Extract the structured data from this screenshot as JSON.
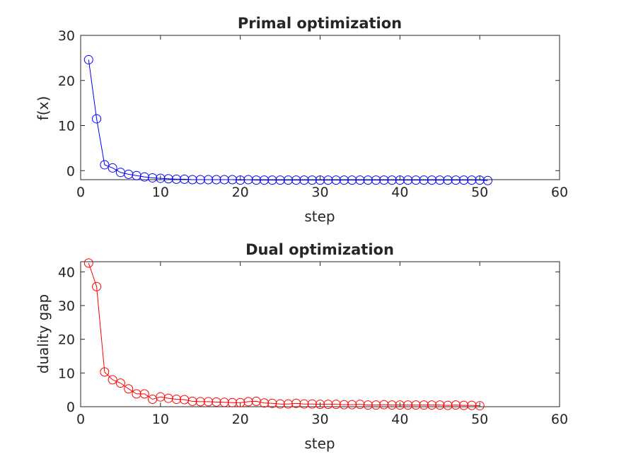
{
  "chart_data": [
    {
      "type": "line",
      "title": "Primal optimization",
      "xlabel": "step",
      "ylabel": "f(x)",
      "xlim": [
        0,
        60
      ],
      "ylim": [
        -2,
        30
      ],
      "xticks": [
        0,
        10,
        20,
        30,
        40,
        50,
        60
      ],
      "yticks": [
        0,
        10,
        20,
        30
      ],
      "grid": false,
      "marker": "circle",
      "color": "#0000ff",
      "series": [
        {
          "x": [
            1,
            2,
            3,
            4,
            5,
            6,
            7,
            8,
            9,
            10,
            11,
            12,
            13,
            14,
            15,
            16,
            17,
            18,
            19,
            20,
            21,
            22,
            23,
            24,
            25,
            26,
            27,
            28,
            29,
            30,
            31,
            32,
            33,
            34,
            35,
            36,
            37,
            38,
            39,
            40,
            41,
            42,
            43,
            44,
            45,
            46,
            47,
            48,
            49,
            50,
            51
          ],
          "values": [
            24.6,
            11.5,
            1.3,
            0.6,
            -0.4,
            -0.8,
            -1.1,
            -1.4,
            -1.6,
            -1.7,
            -1.8,
            -1.9,
            -1.9,
            -2.0,
            -2.0,
            -2.0,
            -2.0,
            -2.0,
            -2.0,
            -2.1,
            -2.0,
            -2.1,
            -2.1,
            -2.1,
            -2.1,
            -2.1,
            -2.1,
            -2.1,
            -2.1,
            -2.1,
            -2.1,
            -2.1,
            -2.1,
            -2.1,
            -2.1,
            -2.1,
            -2.1,
            -2.1,
            -2.1,
            -2.1,
            -2.1,
            -2.1,
            -2.1,
            -2.1,
            -2.1,
            -2.1,
            -2.1,
            -2.1,
            -2.1,
            -2.1,
            -2.2
          ]
        }
      ]
    },
    {
      "type": "line",
      "title": "Dual optimization",
      "xlabel": "step",
      "ylabel": "duality gap",
      "xlim": [
        0,
        60
      ],
      "ylim": [
        0,
        43
      ],
      "xticks": [
        0,
        10,
        20,
        30,
        40,
        50,
        60
      ],
      "yticks": [
        0,
        10,
        20,
        30,
        40
      ],
      "grid": false,
      "marker": "circle",
      "color": "#ff0000",
      "series": [
        {
          "x": [
            1,
            2,
            3,
            4,
            5,
            6,
            7,
            8,
            9,
            10,
            11,
            12,
            13,
            14,
            15,
            16,
            17,
            18,
            19,
            20,
            21,
            22,
            23,
            24,
            25,
            26,
            27,
            28,
            29,
            30,
            31,
            32,
            33,
            34,
            35,
            36,
            37,
            38,
            39,
            40,
            41,
            42,
            43,
            44,
            45,
            46,
            47,
            48,
            49,
            50
          ],
          "values": [
            42.6,
            35.6,
            10.3,
            8.0,
            7.0,
            5.3,
            3.8,
            3.8,
            2.2,
            2.9,
            2.5,
            2.2,
            2.1,
            1.6,
            1.5,
            1.5,
            1.4,
            1.3,
            1.2,
            1.2,
            1.5,
            1.6,
            1.1,
            1.0,
            0.8,
            0.8,
            1.0,
            0.8,
            0.8,
            0.7,
            0.7,
            0.7,
            0.6,
            0.6,
            0.7,
            0.5,
            0.5,
            0.6,
            0.5,
            0.5,
            0.5,
            0.5,
            0.5,
            0.5,
            0.5,
            0.4,
            0.5,
            0.4,
            0.4,
            0.3
          ]
        }
      ]
    }
  ]
}
